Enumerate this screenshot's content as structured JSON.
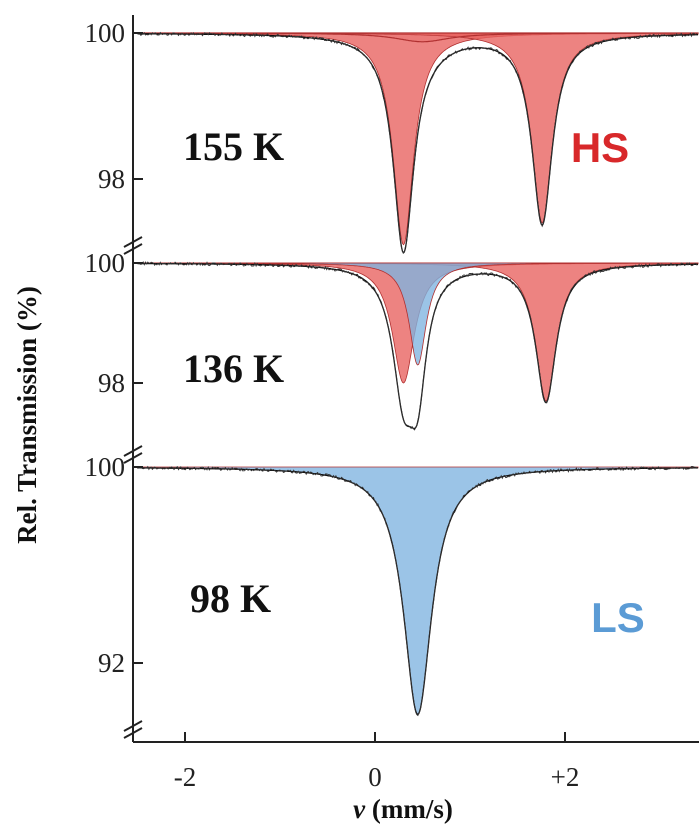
{
  "chart_data": {
    "type": "line",
    "title": "",
    "xlabel": "v (mm/s)",
    "xlabel_var": "v",
    "xlabel_unit": " (mm/s)",
    "ylabel": "Rel. Transmission (%)",
    "x_ticks": [
      {
        "value": -2,
        "label": "-2"
      },
      {
        "value": 0,
        "label": "0"
      },
      {
        "value": 2,
        "label": "+2"
      }
    ],
    "xlim": [
      -2.5,
      3.4
    ],
    "colors": {
      "HS": "#e8605e",
      "LS": "#7fb3e0",
      "fit": "#111111"
    },
    "panels": [
      {
        "label": "155 K",
        "ylim": [
          97.1,
          100.25
        ],
        "y_ticks": [
          {
            "value": 100,
            "label": "100"
          },
          {
            "value": 98,
            "label": "98"
          }
        ],
        "series": [
          {
            "name": "HS",
            "components": [
              {
                "center": 0.3,
                "depth": 2.9,
                "width": 0.13
              },
              {
                "center": 1.76,
                "depth": 2.6,
                "width": 0.13
              }
            ]
          },
          {
            "name": "",
            "components": [
              {
                "center": 0.5,
                "depth": 0.12,
                "width": 0.35
              }
            ]
          }
        ],
        "state_label": "HS"
      },
      {
        "label": "136 K",
        "ylim": [
          96.7,
          100.2
        ],
        "y_ticks": [
          {
            "value": 100,
            "label": "100"
          },
          {
            "value": 98,
            "label": "98"
          }
        ],
        "series": [
          {
            "name": "HS",
            "components": [
              {
                "center": 0.3,
                "depth": 2.0,
                "width": 0.14
              },
              {
                "center": 1.8,
                "depth": 2.3,
                "width": 0.13
              }
            ]
          },
          {
            "name": "LS",
            "components": [
              {
                "center": 0.45,
                "depth": 1.7,
                "width": 0.11
              }
            ]
          }
        ]
      },
      {
        "label": "98 K",
        "ylim": [
          89.2,
          100.4
        ],
        "y_ticks": [
          {
            "value": 100,
            "label": "100"
          },
          {
            "value": 92,
            "label": "92"
          }
        ],
        "series": [
          {
            "name": "LS",
            "components": [
              {
                "center": 0.45,
                "depth": 10.1,
                "width": 0.18
              }
            ]
          }
        ],
        "state_label": "LS"
      }
    ]
  }
}
